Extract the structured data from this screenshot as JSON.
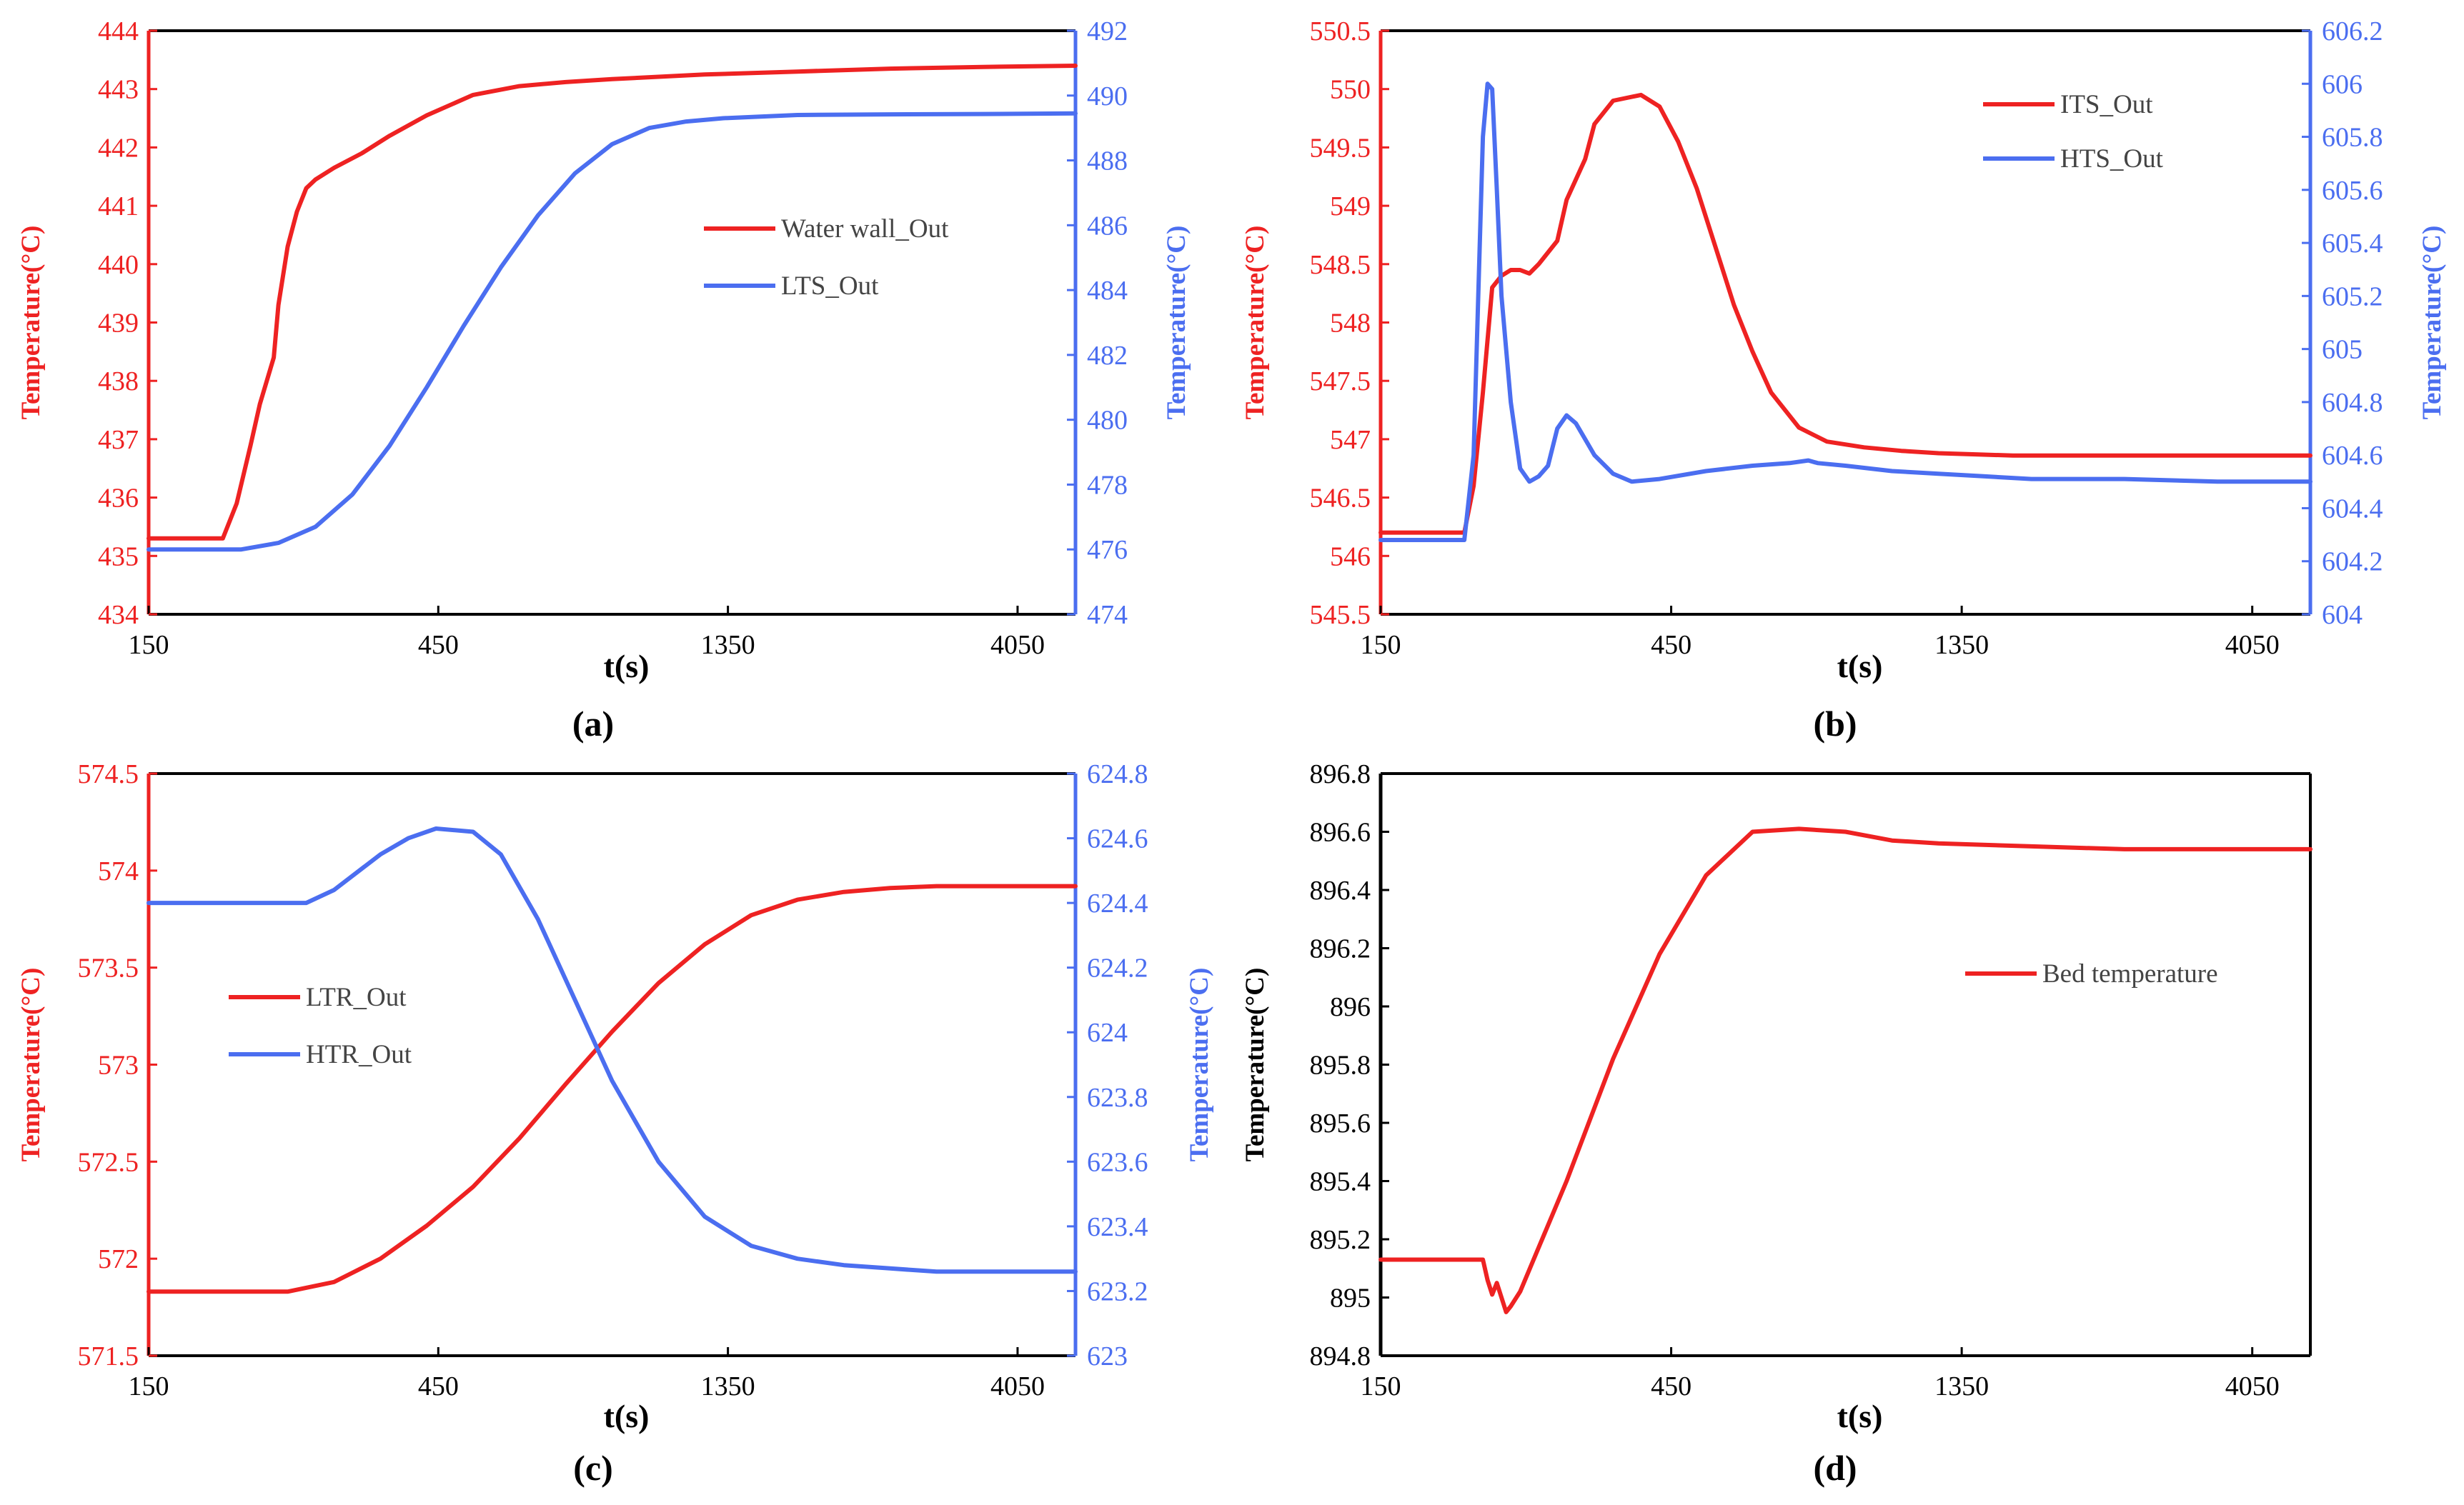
{
  "colors": {
    "red": "#ee2222",
    "blue": "#4b6ef0",
    "black": "#000000"
  },
  "chart_data": [
    {
      "panel": "(a)",
      "type": "line",
      "xlabel": "t(s)",
      "x_ticks": [
        "150",
        "450",
        "1350",
        "4050"
      ],
      "ylabel_left": "Temperature(°C)",
      "ylabel_right": "Temperature(°C)",
      "ylim_left": [
        434,
        444
      ],
      "yticks_left": [
        "434",
        "435",
        "436",
        "437",
        "438",
        "439",
        "440",
        "441",
        "442",
        "443",
        "444"
      ],
      "ylim_right": [
        474,
        492
      ],
      "yticks_right": [
        "474",
        "476",
        "478",
        "480",
        "482",
        "484",
        "486",
        "488",
        "490",
        "492"
      ],
      "legend_position": "middle-right",
      "series": [
        {
          "name": "Water wall_Out",
          "axis": "left",
          "color": "red",
          "x": [
            0,
            0.08,
            0.095,
            0.11,
            0.12,
            0.135,
            0.14,
            0.15,
            0.16,
            0.17,
            0.18,
            0.2,
            0.23,
            0.26,
            0.3,
            0.35,
            0.4,
            0.45,
            0.5,
            0.6,
            0.7,
            0.8,
            0.9,
            1.0
          ],
          "y": [
            435.3,
            435.3,
            435.9,
            436.9,
            437.6,
            438.4,
            439.3,
            440.3,
            440.9,
            441.3,
            441.45,
            441.65,
            441.9,
            442.2,
            442.55,
            442.9,
            443.05,
            443.12,
            443.17,
            443.25,
            443.3,
            443.35,
            443.38,
            443.4
          ]
        },
        {
          "name": "LTS_Out",
          "axis": "right",
          "color": "blue",
          "x": [
            0,
            0.05,
            0.1,
            0.14,
            0.18,
            0.22,
            0.26,
            0.3,
            0.34,
            0.38,
            0.42,
            0.46,
            0.5,
            0.54,
            0.58,
            0.62,
            0.66,
            0.7,
            0.8,
            0.9,
            1.0
          ],
          "y": [
            476,
            476,
            476,
            476.2,
            476.7,
            477.7,
            479.2,
            481,
            482.9,
            484.7,
            486.3,
            487.6,
            488.5,
            489,
            489.2,
            489.3,
            489.35,
            489.4,
            489.42,
            489.43,
            489.45
          ]
        }
      ]
    },
    {
      "panel": "(b)",
      "type": "line",
      "xlabel": "t(s)",
      "x_ticks": [
        "150",
        "450",
        "1350",
        "4050"
      ],
      "ylabel_left": "Temperature(°C)",
      "ylabel_right": "Temperature(°C)",
      "ylim_left": [
        545.5,
        550.5
      ],
      "yticks_left": [
        "545.5",
        "546",
        "546.5",
        "547",
        "547.5",
        "548",
        "548.5",
        "549",
        "549.5",
        "550",
        "550.5"
      ],
      "ylim_right": [
        604,
        606.2
      ],
      "yticks_right": [
        "604",
        "604.2",
        "604.4",
        "604.6",
        "604.8",
        "605",
        "605.2",
        "605.4",
        "605.6",
        "605.8",
        "606",
        "606.2"
      ],
      "legend_position": "top-right",
      "series": [
        {
          "name": "ITS_Out",
          "axis": "left",
          "color": "red",
          "x": [
            0,
            0.09,
            0.1,
            0.11,
            0.12,
            0.13,
            0.14,
            0.15,
            0.16,
            0.17,
            0.19,
            0.2,
            0.22,
            0.23,
            0.25,
            0.28,
            0.3,
            0.32,
            0.34,
            0.36,
            0.38,
            0.4,
            0.42,
            0.45,
            0.48,
            0.52,
            0.56,
            0.6,
            0.64,
            0.68,
            0.72,
            0.8,
            0.9,
            1.0
          ],
          "y": [
            546.2,
            546.2,
            546.6,
            547.4,
            548.3,
            548.4,
            548.45,
            548.45,
            548.42,
            548.5,
            548.7,
            549.05,
            549.4,
            549.7,
            549.9,
            549.95,
            549.85,
            549.55,
            549.15,
            548.65,
            548.15,
            547.75,
            547.4,
            547.1,
            546.98,
            546.93,
            546.9,
            546.88,
            546.87,
            546.86,
            546.86,
            546.86,
            546.86,
            546.86
          ]
        },
        {
          "name": "HTS_Out",
          "axis": "right",
          "color": "blue",
          "x": [
            0,
            0.09,
            0.1,
            0.105,
            0.11,
            0.115,
            0.12,
            0.125,
            0.13,
            0.14,
            0.15,
            0.16,
            0.17,
            0.18,
            0.19,
            0.2,
            0.21,
            0.22,
            0.23,
            0.25,
            0.27,
            0.3,
            0.35,
            0.4,
            0.44,
            0.46,
            0.47,
            0.5,
            0.55,
            0.6,
            0.65,
            0.7,
            0.8,
            0.9,
            1.0
          ],
          "y": [
            604.28,
            604.28,
            604.6,
            605.2,
            605.8,
            606.0,
            605.98,
            605.6,
            605.2,
            604.8,
            604.55,
            604.5,
            604.52,
            604.56,
            604.7,
            604.75,
            604.72,
            604.66,
            604.6,
            604.53,
            604.5,
            604.51,
            604.54,
            604.56,
            604.57,
            604.58,
            604.57,
            604.56,
            604.54,
            604.53,
            604.52,
            604.51,
            604.51,
            604.5,
            604.5
          ]
        }
      ]
    },
    {
      "panel": "(c)",
      "type": "line",
      "xlabel": "t(s)",
      "x_ticks": [
        "150",
        "450",
        "1350",
        "4050"
      ],
      "ylabel_left": "Temperature(°C)",
      "ylabel_right": "Temperature(°C)",
      "ylim_left": [
        571.5,
        574.5
      ],
      "yticks_left": [
        "571.5",
        "572",
        "572.5",
        "573",
        "573.5",
        "574",
        "574.5"
      ],
      "ylim_right": [
        623,
        624.8
      ],
      "yticks_right": [
        "623",
        "623.2",
        "623.4",
        "623.6",
        "623.8",
        "624",
        "624.2",
        "624.4",
        "624.6",
        "624.8"
      ],
      "legend_position": "middle-left",
      "series": [
        {
          "name": "LTR_Out",
          "axis": "left",
          "color": "red",
          "x": [
            0,
            0.15,
            0.2,
            0.25,
            0.3,
            0.35,
            0.4,
            0.45,
            0.5,
            0.55,
            0.6,
            0.65,
            0.7,
            0.75,
            0.8,
            0.85,
            0.9,
            0.95,
            1.0
          ],
          "y": [
            571.83,
            571.83,
            571.88,
            572.0,
            572.17,
            572.37,
            572.62,
            572.9,
            573.17,
            573.42,
            573.62,
            573.77,
            573.85,
            573.89,
            573.91,
            573.92,
            573.92,
            573.92,
            573.92
          ]
        },
        {
          "name": "HTR_Out",
          "axis": "right",
          "color": "blue",
          "x": [
            0,
            0.1,
            0.17,
            0.2,
            0.25,
            0.28,
            0.31,
            0.35,
            0.38,
            0.42,
            0.46,
            0.5,
            0.55,
            0.6,
            0.65,
            0.7,
            0.75,
            0.8,
            0.85,
            0.9,
            1.0
          ],
          "y": [
            624.4,
            624.4,
            624.4,
            624.44,
            624.55,
            624.6,
            624.63,
            624.62,
            624.55,
            624.35,
            624.1,
            623.85,
            623.6,
            623.43,
            623.34,
            623.3,
            623.28,
            623.27,
            623.26,
            623.26,
            623.26
          ]
        }
      ]
    },
    {
      "panel": "(d)",
      "type": "line",
      "xlabel": "t(s)",
      "x_ticks": [
        "150",
        "450",
        "1350",
        "4050"
      ],
      "ylabel_left": "Temperature(°C)",
      "ylim_left": [
        894.8,
        896.8
      ],
      "yticks_left": [
        "894.8",
        "895",
        "895.2",
        "895.4",
        "895.6",
        "895.8",
        "896",
        "896.2",
        "896.4",
        "896.6",
        "896.8"
      ],
      "legend_position": "middle-right",
      "series": [
        {
          "name": "Bed temperature",
          "axis": "left",
          "color": "red",
          "x": [
            0,
            0.11,
            0.115,
            0.12,
            0.125,
            0.13,
            0.135,
            0.14,
            0.15,
            0.2,
            0.25,
            0.3,
            0.35,
            0.4,
            0.45,
            0.5,
            0.55,
            0.6,
            0.7,
            0.8,
            0.9,
            1.0
          ],
          "y": [
            895.13,
            895.13,
            895.06,
            895.01,
            895.05,
            895.0,
            894.95,
            894.97,
            895.02,
            895.4,
            895.82,
            896.18,
            896.45,
            896.6,
            896.61,
            896.6,
            896.57,
            896.56,
            896.55,
            896.54,
            896.54,
            896.54
          ]
        }
      ]
    }
  ]
}
